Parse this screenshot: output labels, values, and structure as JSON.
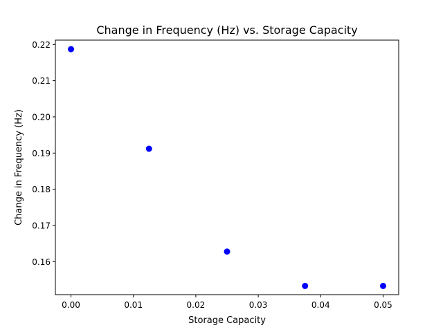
{
  "chart_data": {
    "type": "scatter",
    "title": "Change in Frequency (Hz) vs. Storage Capacity",
    "xlabel": "Storage Capacity",
    "ylabel": "Change in Frequency (Hz)",
    "x_ticks": [
      "0.00",
      "0.01",
      "0.02",
      "0.03",
      "0.04",
      "0.05"
    ],
    "y_ticks": [
      "0.16",
      "0.17",
      "0.18",
      "0.19",
      "0.20",
      "0.21",
      "0.22"
    ],
    "xlim": [
      -0.0025,
      0.0525
    ],
    "ylim": [
      0.1509,
      0.2212
    ],
    "grid": false,
    "marker_color": "#0000ff",
    "series": [
      {
        "x": [
          0.0,
          0.0125,
          0.025,
          0.0375,
          0.05
        ],
        "y": [
          0.2187,
          0.1912,
          0.1628,
          0.1533,
          0.1533
        ]
      }
    ]
  }
}
